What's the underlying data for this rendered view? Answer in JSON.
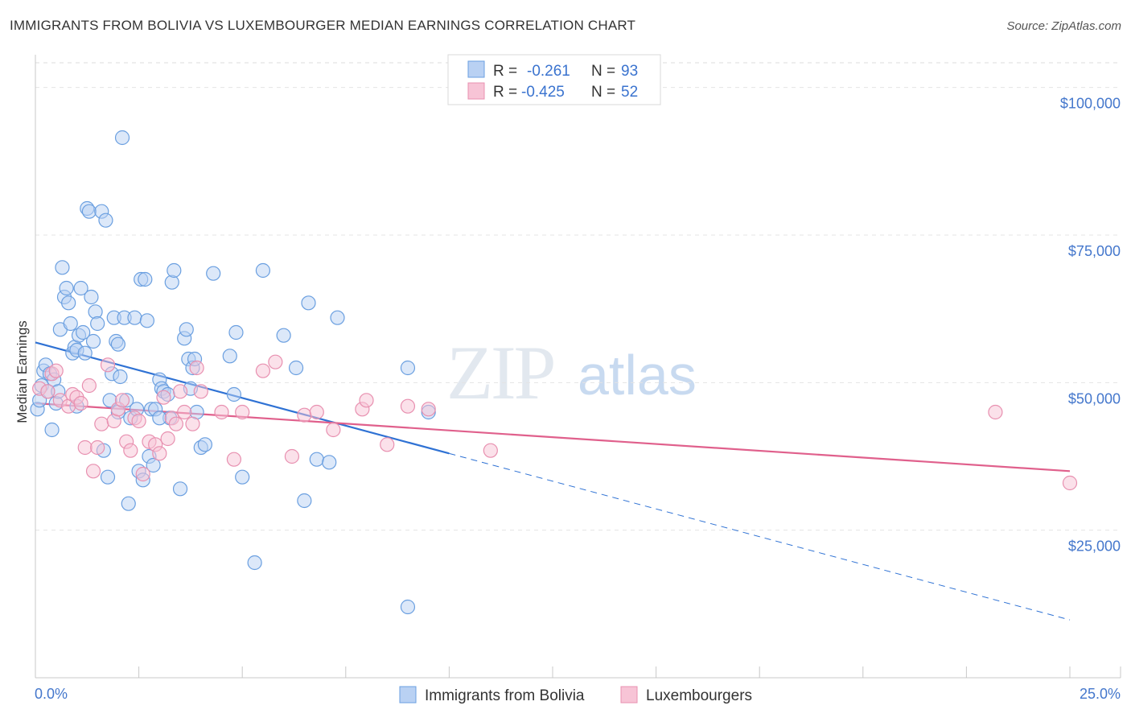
{
  "title": "IMMIGRANTS FROM BOLIVIA VS LUXEMBOURGER MEDIAN EARNINGS CORRELATION CHART",
  "source": "Source: ZipAtlas.com",
  "watermark": {
    "zip": "ZIP",
    "atlas": "atlas"
  },
  "chart_data": {
    "type": "scatter",
    "title": "IMMIGRANTS FROM BOLIVIA VS LUXEMBOURGER MEDIAN EARNINGS CORRELATION CHART",
    "xlabel": "",
    "ylabel": "Median Earnings",
    "xlim": [
      0,
      25
    ],
    "ylim": [
      0,
      105000
    ],
    "x_tick_labels": {
      "min": "0.0%",
      "max": "25.0%"
    },
    "y_ticks": [
      {
        "value": 25000,
        "label": "$25,000"
      },
      {
        "value": 50000,
        "label": "$50,000"
      },
      {
        "value": 75000,
        "label": "$75,000"
      },
      {
        "value": 100000,
        "label": "$100,000"
      }
    ],
    "stats": [
      {
        "r_label": "R =",
        "r_value": "-0.261",
        "n_label": "N =",
        "n_value": "93"
      },
      {
        "r_label": "R =",
        "r_value": "-0.425",
        "n_label": "N =",
        "n_value": "52"
      }
    ],
    "series": [
      {
        "name": "Immigrants from Bolivia",
        "color": "#6a9fe0",
        "fill": "#b9d1f3",
        "line_color": "#2f72d4",
        "trend": {
          "x0": 0,
          "y0": 56800,
          "x1": 10,
          "y1": 38000,
          "x_end": 25,
          "y_end": 9800
        },
        "points": [
          [
            0.05,
            45500
          ],
          [
            0.1,
            47000
          ],
          [
            0.15,
            49500
          ],
          [
            0.2,
            52000
          ],
          [
            0.25,
            53000
          ],
          [
            0.3,
            48500
          ],
          [
            0.35,
            51500
          ],
          [
            0.4,
            42000
          ],
          [
            0.45,
            50500
          ],
          [
            0.5,
            46500
          ],
          [
            0.55,
            48500
          ],
          [
            0.6,
            59000
          ],
          [
            0.65,
            69500
          ],
          [
            0.7,
            64500
          ],
          [
            0.75,
            66000
          ],
          [
            0.8,
            63500
          ],
          [
            0.85,
            60000
          ],
          [
            0.9,
            55000
          ],
          [
            0.95,
            56000
          ],
          [
            1.0,
            55500
          ],
          [
            1.05,
            58000
          ],
          [
            1.1,
            66000
          ],
          [
            1.15,
            58500
          ],
          [
            1.2,
            55000
          ],
          [
            1.25,
            79500
          ],
          [
            1.3,
            79000
          ],
          [
            1.35,
            64500
          ],
          [
            1.4,
            57000
          ],
          [
            1.45,
            62000
          ],
          [
            1.5,
            60000
          ],
          [
            1.6,
            79000
          ],
          [
            1.65,
            38500
          ],
          [
            1.7,
            77500
          ],
          [
            1.75,
            34000
          ],
          [
            1.8,
            47000
          ],
          [
            1.85,
            51500
          ],
          [
            1.9,
            61000
          ],
          [
            1.95,
            57000
          ],
          [
            2.0,
            56500
          ],
          [
            2.05,
            51000
          ],
          [
            2.1,
            91500
          ],
          [
            2.15,
            61000
          ],
          [
            2.2,
            47000
          ],
          [
            2.25,
            29500
          ],
          [
            2.3,
            44000
          ],
          [
            2.4,
            61000
          ],
          [
            2.45,
            45500
          ],
          [
            2.5,
            35000
          ],
          [
            2.55,
            67500
          ],
          [
            2.6,
            33500
          ],
          [
            2.65,
            67500
          ],
          [
            2.7,
            60500
          ],
          [
            2.75,
            37500
          ],
          [
            2.8,
            45500
          ],
          [
            2.85,
            36000
          ],
          [
            2.9,
            45500
          ],
          [
            3.0,
            50500
          ],
          [
            3.05,
            49000
          ],
          [
            3.1,
            48500
          ],
          [
            3.2,
            48000
          ],
          [
            3.25,
            44000
          ],
          [
            3.3,
            67000
          ],
          [
            3.35,
            69000
          ],
          [
            3.5,
            32000
          ],
          [
            3.6,
            57500
          ],
          [
            3.65,
            59000
          ],
          [
            3.7,
            54000
          ],
          [
            3.75,
            49000
          ],
          [
            3.8,
            52500
          ],
          [
            3.85,
            54000
          ],
          [
            3.9,
            45000
          ],
          [
            4.0,
            39000
          ],
          [
            4.1,
            39500
          ],
          [
            4.3,
            68500
          ],
          [
            4.7,
            54500
          ],
          [
            4.8,
            48000
          ],
          [
            4.85,
            58500
          ],
          [
            5.0,
            34000
          ],
          [
            5.3,
            19500
          ],
          [
            5.5,
            69000
          ],
          [
            6.0,
            58000
          ],
          [
            6.3,
            52500
          ],
          [
            6.5,
            30000
          ],
          [
            6.6,
            63500
          ],
          [
            6.8,
            37000
          ],
          [
            7.1,
            36500
          ],
          [
            7.3,
            61000
          ],
          [
            9.0,
            12000
          ],
          [
            9.0,
            52500
          ],
          [
            9.5,
            45000
          ],
          [
            2.0,
            45000
          ],
          [
            3.0,
            44000
          ],
          [
            1.0,
            46000
          ]
        ]
      },
      {
        "name": "Luxembourgers",
        "color": "#e890b0",
        "fill": "#f7c4d6",
        "line_color": "#e0608c",
        "trend": {
          "x0": 0,
          "y0": 46500,
          "x1": 25,
          "y1": 35000
        },
        "points": [
          [
            0.1,
            49000
          ],
          [
            0.3,
            48500
          ],
          [
            0.4,
            51500
          ],
          [
            0.5,
            52000
          ],
          [
            0.6,
            47000
          ],
          [
            0.8,
            46000
          ],
          [
            0.9,
            48000
          ],
          [
            1.0,
            47500
          ],
          [
            1.1,
            46500
          ],
          [
            1.2,
            39000
          ],
          [
            1.3,
            49500
          ],
          [
            1.4,
            35000
          ],
          [
            1.5,
            39000
          ],
          [
            1.6,
            43000
          ],
          [
            1.75,
            53000
          ],
          [
            1.9,
            43500
          ],
          [
            2.0,
            45500
          ],
          [
            2.1,
            47000
          ],
          [
            2.2,
            40000
          ],
          [
            2.3,
            38500
          ],
          [
            2.4,
            44000
          ],
          [
            2.5,
            43500
          ],
          [
            2.6,
            34500
          ],
          [
            2.75,
            40000
          ],
          [
            2.9,
            39500
          ],
          [
            3.0,
            38000
          ],
          [
            3.1,
            47500
          ],
          [
            3.2,
            40500
          ],
          [
            3.3,
            44000
          ],
          [
            3.4,
            43000
          ],
          [
            3.5,
            48500
          ],
          [
            3.6,
            45000
          ],
          [
            3.8,
            43000
          ],
          [
            3.9,
            52500
          ],
          [
            4.0,
            48500
          ],
          [
            4.5,
            45000
          ],
          [
            4.8,
            37000
          ],
          [
            5.0,
            45000
          ],
          [
            5.5,
            52000
          ],
          [
            5.8,
            53500
          ],
          [
            6.2,
            37500
          ],
          [
            6.5,
            44500
          ],
          [
            6.8,
            45000
          ],
          [
            7.2,
            42000
          ],
          [
            7.9,
            45500
          ],
          [
            8.0,
            47000
          ],
          [
            8.5,
            39500
          ],
          [
            9.0,
            46000
          ],
          [
            9.5,
            45500
          ],
          [
            11.0,
            38500
          ],
          [
            23.2,
            45000
          ],
          [
            25.0,
            33000
          ]
        ]
      }
    ]
  }
}
